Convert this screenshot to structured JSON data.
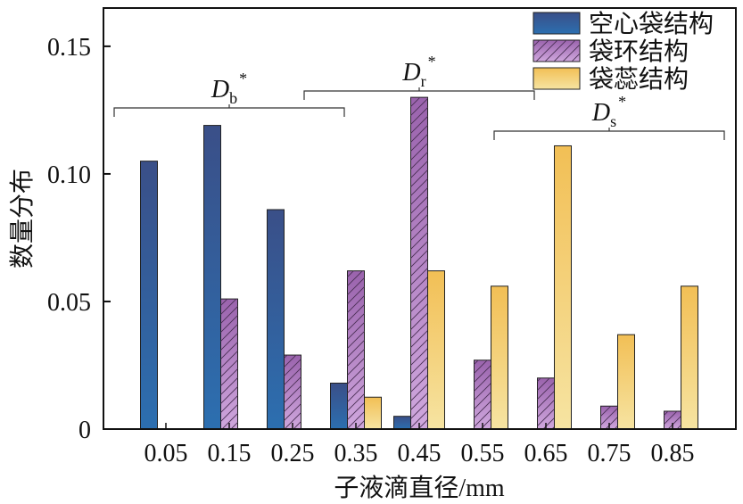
{
  "chart_data": {
    "type": "bar",
    "title": "",
    "xlabel": "子液滴直径/mm",
    "ylabel": "数量分布",
    "categories": [
      "0.05",
      "0.15",
      "0.25",
      "0.35",
      "0.45",
      "0.55",
      "0.65",
      "0.75",
      "0.85"
    ],
    "ylim": [
      0,
      0.165
    ],
    "yticks": [
      "0",
      "0.05",
      "0.10",
      "0.15"
    ],
    "series": [
      {
        "name": "空心袋结构",
        "color": "#2f5d98",
        "values": [
          0.105,
          0.119,
          0.086,
          0.018,
          0.005,
          0,
          0,
          0,
          0
        ]
      },
      {
        "name": "袋环结构",
        "color": "#b07ec2",
        "values": [
          0,
          0.051,
          0.029,
          0.062,
          0.13,
          0.027,
          0.02,
          0.009,
          0.007
        ]
      },
      {
        "name": "袋蕊结构",
        "color": "#f4c860",
        "values": [
          0,
          0,
          0,
          0.0125,
          0.062,
          0.056,
          0.111,
          0.037,
          0.056
        ]
      }
    ],
    "legend_position": "top-right",
    "annotations": [
      {
        "main": "D",
        "sub": "b",
        "sup": "*",
        "from_category": "0.05",
        "to_category": "0.25"
      },
      {
        "main": "D",
        "sub": "r",
        "sup": "*",
        "from_category": "0.35",
        "to_category": "0.55"
      },
      {
        "main": "D",
        "sub": "s",
        "sup": "*",
        "from_category": "0.65",
        "to_category": "0.85"
      }
    ]
  }
}
